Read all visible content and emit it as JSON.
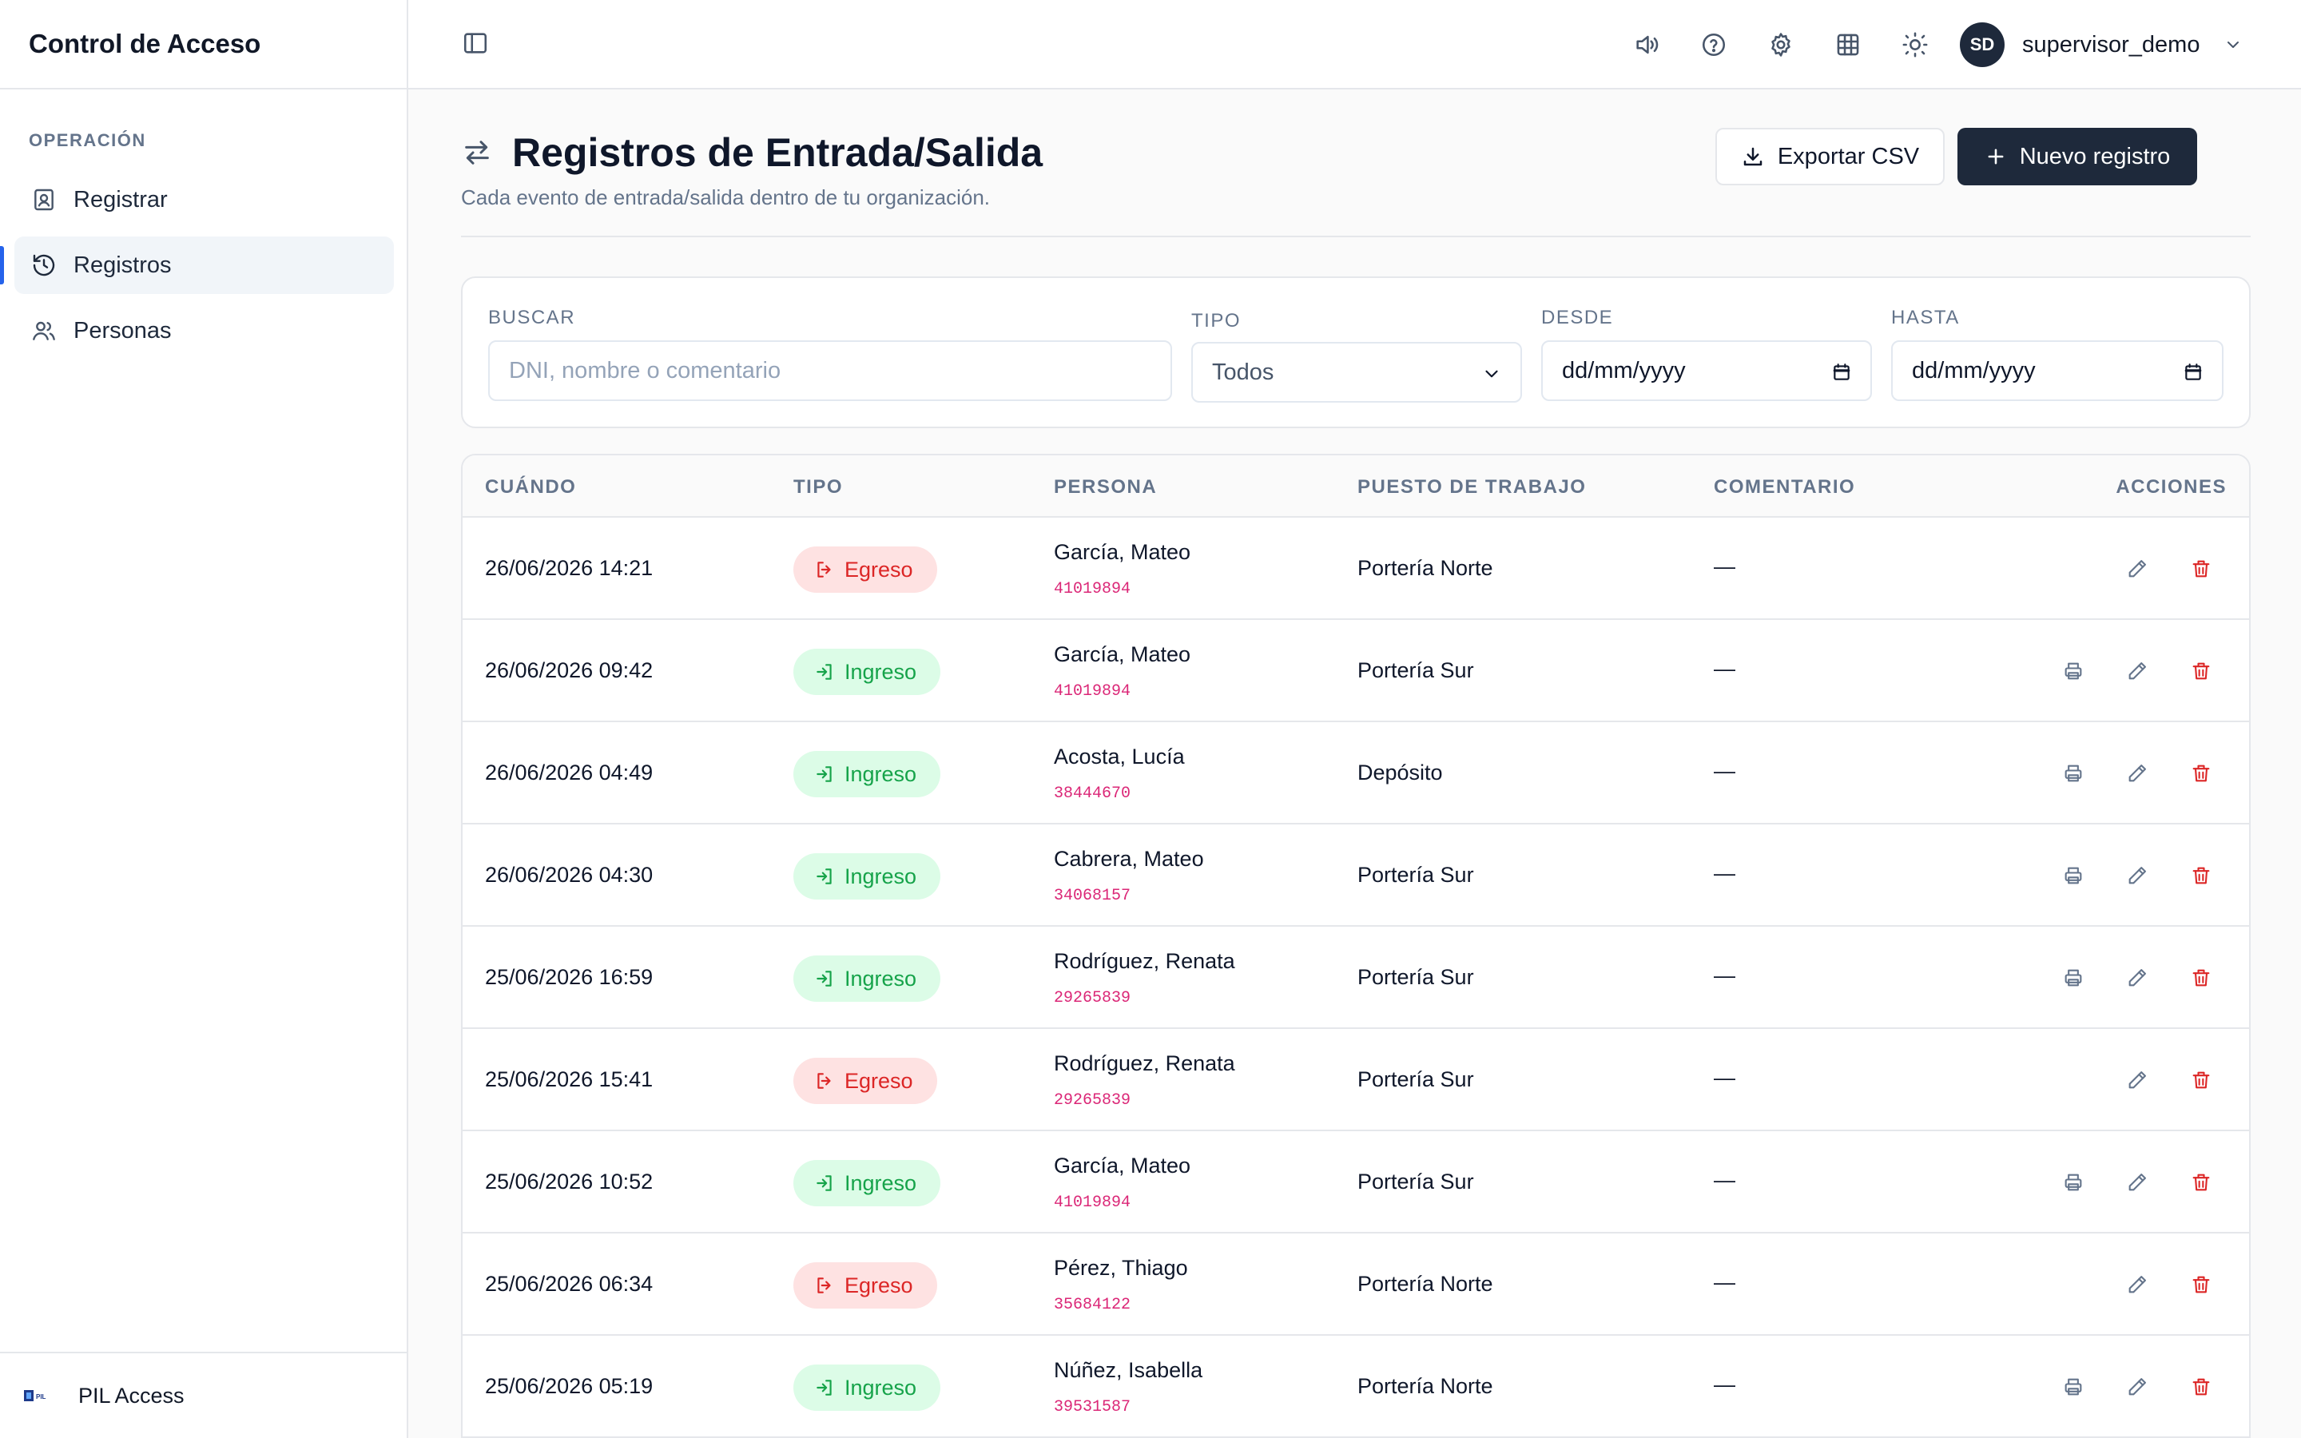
{
  "app": {
    "title": "Control de Acceso"
  },
  "sidebar": {
    "section": "OPERACIÓN",
    "items": [
      {
        "label": "Registrar",
        "icon": "id-badge-icon",
        "active": false
      },
      {
        "label": "Registros",
        "icon": "history-icon",
        "active": true
      },
      {
        "label": "Personas",
        "icon": "users-icon",
        "active": false
      }
    ],
    "org": {
      "name": "PIL Access",
      "logo_text": "PIL"
    }
  },
  "topbar": {
    "icons": [
      "speaker-icon",
      "help-icon",
      "settings-icon",
      "grid-icon",
      "theme-sun-icon"
    ],
    "user": {
      "initials": "SD",
      "name": "supervisor_demo"
    }
  },
  "page": {
    "title": "Registros de Entrada/Salida",
    "subtitle": "Cada evento de entrada/salida dentro de tu organización.",
    "export_label": "Exportar CSV",
    "new_label": "Nuevo registro"
  },
  "filters": {
    "search": {
      "label": "BUSCAR",
      "placeholder": "DNI, nombre o comentario",
      "value": ""
    },
    "type": {
      "label": "TIPO",
      "value": "Todos"
    },
    "from": {
      "label": "DESDE",
      "value": "dd/mm/yyyy"
    },
    "to": {
      "label": "HASTA",
      "value": "dd/mm/yyyy"
    }
  },
  "table": {
    "headers": [
      "CUÁNDO",
      "TIPO",
      "PERSONA",
      "PUESTO DE TRABAJO",
      "COMENTARIO",
      "ACCIONES"
    ],
    "rows": [
      {
        "when": "26/06/2026 14:21",
        "type": "Egreso",
        "name": "García, Mateo",
        "dni": "41019894",
        "place": "Portería Norte",
        "comment": "—",
        "printable": false
      },
      {
        "when": "26/06/2026 09:42",
        "type": "Ingreso",
        "name": "García, Mateo",
        "dni": "41019894",
        "place": "Portería Sur",
        "comment": "—",
        "printable": true
      },
      {
        "when": "26/06/2026 04:49",
        "type": "Ingreso",
        "name": "Acosta, Lucía",
        "dni": "38444670",
        "place": "Depósito",
        "comment": "—",
        "printable": true
      },
      {
        "when": "26/06/2026 04:30",
        "type": "Ingreso",
        "name": "Cabrera, Mateo",
        "dni": "34068157",
        "place": "Portería Sur",
        "comment": "—",
        "printable": true
      },
      {
        "when": "25/06/2026 16:59",
        "type": "Ingreso",
        "name": "Rodríguez, Renata",
        "dni": "29265839",
        "place": "Portería Sur",
        "comment": "—",
        "printable": true
      },
      {
        "when": "25/06/2026 15:41",
        "type": "Egreso",
        "name": "Rodríguez, Renata",
        "dni": "29265839",
        "place": "Portería Sur",
        "comment": "—",
        "printable": false
      },
      {
        "when": "25/06/2026 10:52",
        "type": "Ingreso",
        "name": "García, Mateo",
        "dni": "41019894",
        "place": "Portería Sur",
        "comment": "—",
        "printable": true
      },
      {
        "when": "25/06/2026 06:34",
        "type": "Egreso",
        "name": "Pérez, Thiago",
        "dni": "35684122",
        "place": "Portería Norte",
        "comment": "—",
        "printable": false
      },
      {
        "when": "25/06/2026 05:19",
        "type": "Ingreso",
        "name": "Núñez, Isabella",
        "dni": "39531587",
        "place": "Portería Norte",
        "comment": "—",
        "printable": true
      }
    ]
  },
  "colors": {
    "primary": "#1e293b",
    "accent": "#2563eb",
    "egreso": "#dc2626",
    "ingreso": "#16a34a",
    "dni": "#db2777"
  }
}
